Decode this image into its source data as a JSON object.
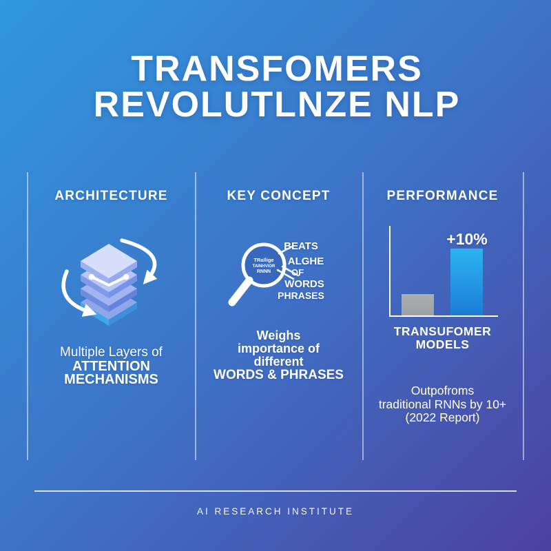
{
  "title": {
    "line1": "TRANSFOMERS",
    "line2": "REVOLUTLNZE NLP"
  },
  "columns": [
    {
      "header": "ARCHITECTURE",
      "icon": "layer-stack-with-rotation-arrows-icon",
      "caption": [
        "Multiple Layers of",
        "ATTENTION",
        "MECHANISMS"
      ]
    },
    {
      "header": "KEY CONCEPT",
      "icon": "magnifier-icon",
      "lens_lines": [
        "TRallige",
        "TAINHVIOR",
        "RNNN"
      ],
      "callouts": [
        "BEATS",
        "ALGHE",
        "OF",
        "WORDS",
        "PHRASES"
      ],
      "caption": [
        "Weighs",
        "importance of",
        "different",
        "WORDS & PHRASES"
      ]
    },
    {
      "header": "PERFORMANCE",
      "icon": "bar-chart-icon",
      "annotation": "+10%",
      "chart_caption": [
        "TRANSUFOMER",
        "MODELS"
      ],
      "note": [
        "Outpofroms",
        "traditional RNNs by 10+",
        "(2022 Report)"
      ]
    }
  ],
  "footer": {
    "label": "AI RESEARCH INSTITUTE"
  },
  "colors": {
    "bg_top_left": "#2F98DF",
    "bg_mid": "#3E72C6",
    "bg_bottom_right": "#4C41A0",
    "text": "#FFFFFF",
    "divider": "rgba(235,242,255,0.55)"
  },
  "chart_data": {
    "type": "bar",
    "categories": [
      "(unlabeled gray bar)",
      "(unlabeled blue bar)"
    ],
    "values": [
      24,
      76
    ],
    "value_unit": "percent of unlabeled axis height",
    "bar_colors": [
      [
        "#ACAEB0",
        "#9EA1A4"
      ],
      [
        "#2CB4F1",
        "#1C7CD6"
      ]
    ],
    "annotations": [
      {
        "bar": 1,
        "label": "+10%"
      }
    ],
    "title": "",
    "xlabel": "TRANSUFOMER MODELS",
    "ylabel": "",
    "ylim": [
      0,
      100
    ],
    "grid": false,
    "legend": false
  }
}
